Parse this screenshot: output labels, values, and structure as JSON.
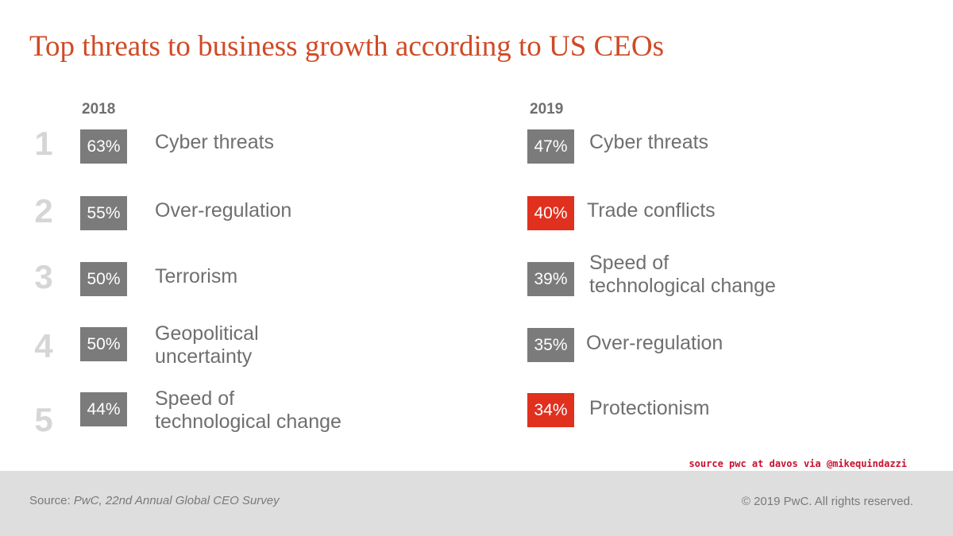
{
  "title": "Top threats to business growth according to US CEOs",
  "colors": {
    "title": "#d04a26",
    "badge_grey": "#7b7b7b",
    "badge_red": "#e0301e",
    "credit": "#c8102e"
  },
  "years": {
    "left": "2018",
    "right": "2019"
  },
  "ranks": [
    "1",
    "2",
    "3",
    "4",
    "5"
  ],
  "list_2018": [
    {
      "value": "63%",
      "lines": [
        "Cyber threats"
      ],
      "highlight": false
    },
    {
      "value": "55%",
      "lines": [
        "Over-regulation"
      ],
      "highlight": false
    },
    {
      "value": "50%",
      "lines": [
        "Terrorism"
      ],
      "highlight": false
    },
    {
      "value": "50%",
      "lines": [
        "Geopolitical",
        "uncertainty"
      ],
      "highlight": false
    },
    {
      "value": "44%",
      "lines": [
        "Speed of",
        "technological change"
      ],
      "highlight": false
    }
  ],
  "list_2019": [
    {
      "value": "47%",
      "lines": [
        "Cyber threats"
      ],
      "highlight": false
    },
    {
      "value": "40%",
      "lines": [
        "Trade conflicts"
      ],
      "highlight": true
    },
    {
      "value": "39%",
      "lines": [
        "Speed of",
        "technological change"
      ],
      "highlight": false
    },
    {
      "value": "35%",
      "lines": [
        "Over-regulation"
      ],
      "highlight": false
    },
    {
      "value": "34%",
      "lines": [
        "Protectionism"
      ],
      "highlight": true
    }
  ],
  "credit": "source pwc at davos via @mikequindazzi",
  "footer": {
    "source_prefix": "Source: ",
    "source_text": "PwC, 22nd Annual Global CEO Survey",
    "copyright": "© 2019 PwC. All rights reserved."
  }
}
